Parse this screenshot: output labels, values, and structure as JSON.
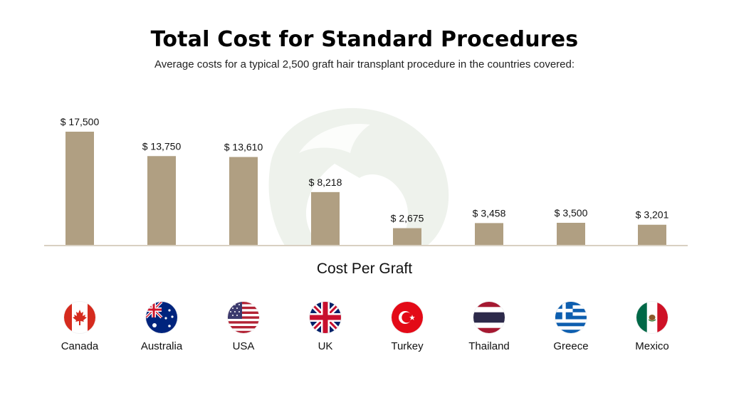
{
  "colors": {
    "bar": "#b09f82",
    "baseline": "#d8d0c2",
    "watermark": "#eef2ec"
  },
  "chart_data": {
    "type": "bar",
    "title": "Total Cost for Standard Procedures",
    "subtitle": "Average costs for a typical 2,500 graft hair transplant procedure in the countries covered:",
    "xlabel": "Cost Per Graft",
    "ylabel": "",
    "categories": [
      "Canada",
      "Australia",
      "USA",
      "UK",
      "Turkey",
      "Thailand",
      "Greece",
      "Mexico"
    ],
    "values": [
      17500,
      13750,
      13610,
      8218,
      2675,
      3458,
      3500,
      3201
    ],
    "value_labels": [
      "$ 17,500",
      "$ 13,750",
      "$ 13,610",
      "$ 8,218",
      "$ 2,675",
      "$ 3,458",
      "$ 3,500",
      "$ 3,201"
    ],
    "ylim": [
      0,
      17500
    ],
    "grid": false,
    "legend": "none"
  },
  "countries": [
    {
      "name": "Canada",
      "flag": "canada-flag-icon"
    },
    {
      "name": "Australia",
      "flag": "australia-flag-icon"
    },
    {
      "name": "USA",
      "flag": "usa-flag-icon"
    },
    {
      "name": "UK",
      "flag": "uk-flag-icon"
    },
    {
      "name": "Turkey",
      "flag": "turkey-flag-icon"
    },
    {
      "name": "Thailand",
      "flag": "thailand-flag-icon"
    },
    {
      "name": "Greece",
      "flag": "greece-flag-icon"
    },
    {
      "name": "Mexico",
      "flag": "mexico-flag-icon"
    }
  ]
}
